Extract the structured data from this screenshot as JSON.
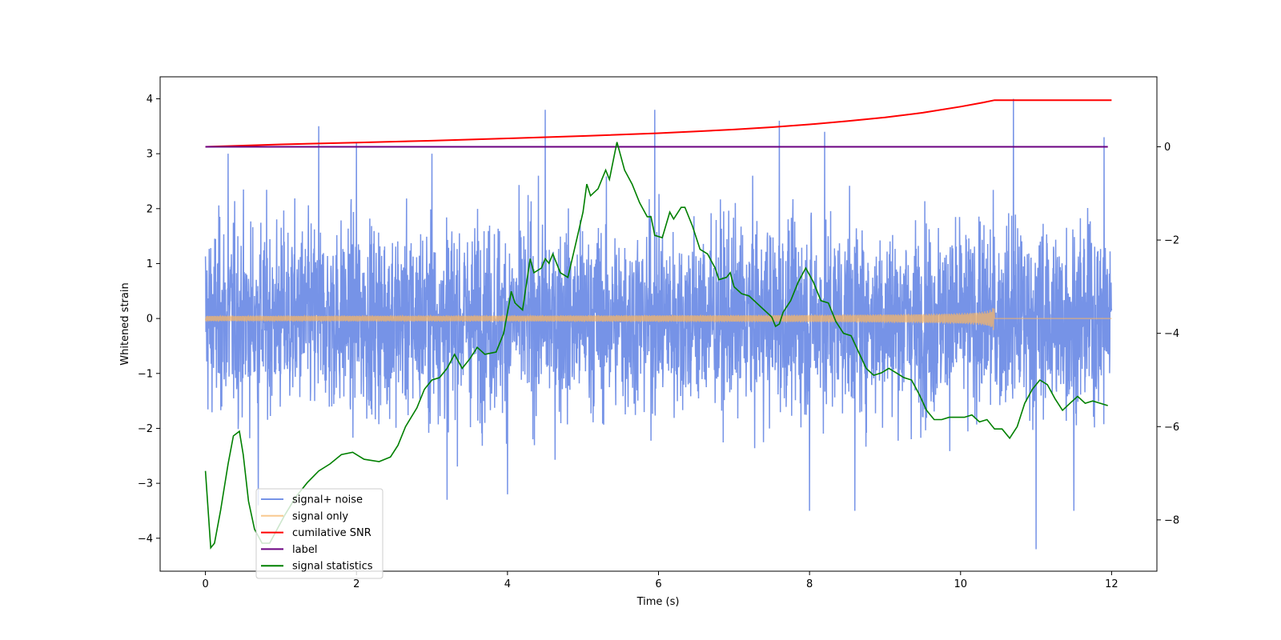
{
  "chart_data": {
    "type": "line",
    "title": "",
    "xlabel": "Time (s)",
    "ylabel": "Whitened strain",
    "y2label": "",
    "xlim": [
      -0.6,
      12.6
    ],
    "ylim": [
      -4.6,
      4.4
    ],
    "y2lim": [
      -9.1,
      1.5
    ],
    "x_ticks": [
      0,
      2,
      4,
      6,
      8,
      10,
      12
    ],
    "x_tick_labels": [
      "0",
      "2",
      "4",
      "6",
      "8",
      "10",
      "12"
    ],
    "y_ticks": [
      4,
      3,
      2,
      1,
      0,
      -1,
      -2,
      -3,
      -4
    ],
    "y_tick_labels": [
      "4",
      "3",
      "2",
      "1",
      "0",
      "−1",
      "−2",
      "−3",
      "−4"
    ],
    "y2_ticks": [
      0,
      -2,
      -4,
      -6,
      -8
    ],
    "y2_tick_labels": [
      "0",
      "−2",
      "−4",
      "−6",
      "−8"
    ],
    "grid": false,
    "legend_position": "lower-left",
    "series": [
      {
        "name": "signal+ noise",
        "axis": "left",
        "color": "#6f8de6",
        "kind": "noise",
        "x_range": [
          0,
          12
        ],
        "sigma": 1.0,
        "envelope": [
          -2.4,
          2.4
        ],
        "spikes": [
          [
            1.5,
            3.5
          ],
          [
            4.5,
            3.8
          ],
          [
            5.95,
            3.8
          ],
          [
            7.6,
            3.6
          ],
          [
            8.2,
            3.4
          ],
          [
            10.7,
            4.0
          ],
          [
            11.9,
            3.3
          ],
          [
            0.3,
            3.0
          ],
          [
            2.0,
            3.2
          ],
          [
            3.0,
            3.0
          ],
          [
            11.0,
            -4.2
          ],
          [
            8.6,
            -3.5
          ],
          [
            3.2,
            -3.3
          ],
          [
            8.0,
            -3.5
          ],
          [
            4.0,
            -3.2
          ],
          [
            0.7,
            -3.4
          ],
          [
            11.5,
            -3.5
          ]
        ]
      },
      {
        "name": "signal only",
        "axis": "left",
        "color": "#f5b66a",
        "kind": "chirp",
        "x_range": [
          0,
          12
        ],
        "end_time": 10.45,
        "peak_amplitude": 0.28
      },
      {
        "name": "cumilative SNR",
        "axis": "right",
        "color": "#ff0000",
        "points": [
          [
            0,
            0.0
          ],
          [
            2,
            0.08
          ],
          [
            4,
            0.18
          ],
          [
            6,
            0.3
          ],
          [
            7,
            0.38
          ],
          [
            8,
            0.5
          ],
          [
            9,
            0.66
          ],
          [
            9.8,
            0.85
          ],
          [
            10.2,
            1.0
          ],
          [
            10.45,
            1.0
          ],
          [
            12,
            1.0
          ]
        ],
        "curve": [
          [
            0,
            0.0
          ],
          [
            1,
            0.05
          ],
          [
            2,
            0.09
          ],
          [
            3,
            0.13
          ],
          [
            4,
            0.18
          ],
          [
            5,
            0.23
          ],
          [
            6,
            0.29
          ],
          [
            6.5,
            0.33
          ],
          [
            7,
            0.37
          ],
          [
            7.5,
            0.42
          ],
          [
            8,
            0.48
          ],
          [
            8.5,
            0.55
          ],
          [
            9,
            0.63
          ],
          [
            9.5,
            0.73
          ],
          [
            10,
            0.86
          ],
          [
            10.3,
            0.95
          ],
          [
            10.45,
            1.0
          ],
          [
            12,
            1.0
          ]
        ]
      },
      {
        "name": "label",
        "axis": "right",
        "color": "#6a0080",
        "points": [
          [
            0,
            0
          ],
          [
            11.95,
            0
          ]
        ]
      },
      {
        "name": "signal statistics",
        "axis": "right",
        "color": "#008000",
        "points": [
          [
            0,
            -6.95
          ],
          [
            0.07,
            -8.6
          ],
          [
            0.12,
            -8.5
          ],
          [
            0.2,
            -7.8
          ],
          [
            0.3,
            -6.8
          ],
          [
            0.37,
            -6.2
          ],
          [
            0.45,
            -6.1
          ],
          [
            0.5,
            -6.6
          ],
          [
            0.57,
            -7.6
          ],
          [
            0.65,
            -8.2
          ],
          [
            0.75,
            -8.5
          ],
          [
            0.85,
            -8.5
          ],
          [
            0.95,
            -8.2
          ],
          [
            1.05,
            -7.9
          ],
          [
            1.2,
            -7.5
          ],
          [
            1.35,
            -7.2
          ],
          [
            1.5,
            -6.95
          ],
          [
            1.65,
            -6.8
          ],
          [
            1.8,
            -6.6
          ],
          [
            1.95,
            -6.55
          ],
          [
            2.1,
            -6.7
          ],
          [
            2.3,
            -6.75
          ],
          [
            2.45,
            -6.65
          ],
          [
            2.55,
            -6.4
          ],
          [
            2.65,
            -6.0
          ],
          [
            2.8,
            -5.6
          ],
          [
            2.9,
            -5.2
          ],
          [
            3.0,
            -5.0
          ],
          [
            3.1,
            -4.95
          ],
          [
            3.2,
            -4.75
          ],
          [
            3.3,
            -4.45
          ],
          [
            3.4,
            -4.75
          ],
          [
            3.5,
            -4.55
          ],
          [
            3.6,
            -4.3
          ],
          [
            3.7,
            -4.45
          ],
          [
            3.85,
            -4.4
          ],
          [
            3.95,
            -4.0
          ],
          [
            4.05,
            -3.1
          ],
          [
            4.1,
            -3.35
          ],
          [
            4.2,
            -3.5
          ],
          [
            4.3,
            -2.4
          ],
          [
            4.35,
            -2.7
          ],
          [
            4.45,
            -2.6
          ],
          [
            4.5,
            -2.4
          ],
          [
            4.55,
            -2.5
          ],
          [
            4.6,
            -2.3
          ],
          [
            4.7,
            -2.7
          ],
          [
            4.8,
            -2.8
          ],
          [
            4.9,
            -2.1
          ],
          [
            5.0,
            -1.4
          ],
          [
            5.05,
            -0.8
          ],
          [
            5.1,
            -1.05
          ],
          [
            5.2,
            -0.9
          ],
          [
            5.3,
            -0.5
          ],
          [
            5.35,
            -0.7
          ],
          [
            5.45,
            0.1
          ],
          [
            5.55,
            -0.5
          ],
          [
            5.65,
            -0.8
          ],
          [
            5.75,
            -1.2
          ],
          [
            5.85,
            -1.5
          ],
          [
            5.9,
            -1.5
          ],
          [
            5.95,
            -1.9
          ],
          [
            6.05,
            -1.95
          ],
          [
            6.15,
            -1.4
          ],
          [
            6.2,
            -1.55
          ],
          [
            6.3,
            -1.3
          ],
          [
            6.35,
            -1.3
          ],
          [
            6.45,
            -1.7
          ],
          [
            6.55,
            -2.2
          ],
          [
            6.65,
            -2.3
          ],
          [
            6.75,
            -2.6
          ],
          [
            6.8,
            -2.85
          ],
          [
            6.9,
            -2.8
          ],
          [
            6.95,
            -2.7
          ],
          [
            7.0,
            -3.0
          ],
          [
            7.1,
            -3.15
          ],
          [
            7.2,
            -3.2
          ],
          [
            7.3,
            -3.35
          ],
          [
            7.4,
            -3.5
          ],
          [
            7.5,
            -3.65
          ],
          [
            7.55,
            -3.85
          ],
          [
            7.6,
            -3.8
          ],
          [
            7.65,
            -3.55
          ],
          [
            7.75,
            -3.3
          ],
          [
            7.85,
            -2.9
          ],
          [
            7.95,
            -2.6
          ],
          [
            8.05,
            -2.9
          ],
          [
            8.15,
            -3.3
          ],
          [
            8.25,
            -3.35
          ],
          [
            8.35,
            -3.75
          ],
          [
            8.45,
            -4.0
          ],
          [
            8.55,
            -4.05
          ],
          [
            8.65,
            -4.4
          ],
          [
            8.75,
            -4.75
          ],
          [
            8.85,
            -4.9
          ],
          [
            8.95,
            -4.85
          ],
          [
            9.05,
            -4.75
          ],
          [
            9.15,
            -4.85
          ],
          [
            9.25,
            -4.95
          ],
          [
            9.35,
            -5.0
          ],
          [
            9.45,
            -5.3
          ],
          [
            9.55,
            -5.65
          ],
          [
            9.65,
            -5.85
          ],
          [
            9.75,
            -5.85
          ],
          [
            9.85,
            -5.8
          ],
          [
            9.95,
            -5.8
          ],
          [
            10.05,
            -5.8
          ],
          [
            10.15,
            -5.75
          ],
          [
            10.25,
            -5.9
          ],
          [
            10.35,
            -5.85
          ],
          [
            10.45,
            -6.05
          ],
          [
            10.55,
            -6.05
          ],
          [
            10.65,
            -6.25
          ],
          [
            10.75,
            -6.0
          ],
          [
            10.85,
            -5.5
          ],
          [
            10.95,
            -5.2
          ],
          [
            11.05,
            -5.0
          ],
          [
            11.15,
            -5.1
          ],
          [
            11.25,
            -5.4
          ],
          [
            11.35,
            -5.65
          ],
          [
            11.45,
            -5.5
          ],
          [
            11.55,
            -5.35
          ],
          [
            11.65,
            -5.5
          ],
          [
            11.75,
            -5.45
          ],
          [
            11.85,
            -5.5
          ],
          [
            11.95,
            -5.55
          ]
        ]
      }
    ]
  },
  "colors": {
    "signal_noise": "#6f8de6",
    "signal_only": "#f5b66a",
    "cumulative_snr": "#ff0000",
    "label": "#6a0080",
    "signal_statistics": "#008000"
  }
}
